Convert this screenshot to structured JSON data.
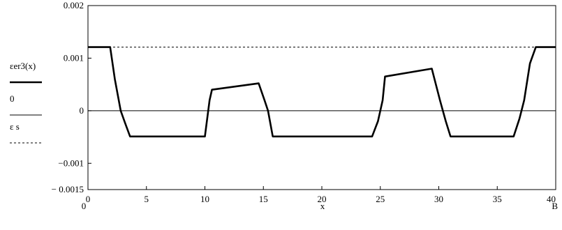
{
  "chart_data": {
    "type": "line",
    "xlabel": "x",
    "x_range_labels": {
      "min": "0",
      "max": "B"
    },
    "xlim": [
      0,
      40
    ],
    "ylim": [
      -0.0015,
      0.002
    ],
    "x_ticks": [
      {
        "value": 0,
        "label": "0"
      },
      {
        "value": 5,
        "label": "5"
      },
      {
        "value": 10,
        "label": "10"
      },
      {
        "value": 15,
        "label": "15"
      },
      {
        "value": 20,
        "label": "20"
      },
      {
        "value": 25,
        "label": "25"
      },
      {
        "value": 30,
        "label": "30"
      },
      {
        "value": 35,
        "label": "35"
      },
      {
        "value": 40,
        "label": "40"
      }
    ],
    "y_ticks": [
      {
        "value": 0.002,
        "label": "0.002"
      },
      {
        "value": 0.001,
        "label": "0.001"
      },
      {
        "value": 0,
        "label": "0"
      },
      {
        "value": -0.001,
        "label": "−0.001"
      },
      {
        "value": -0.0015,
        "label": "− 0.0015"
      }
    ],
    "series": [
      {
        "name": "εer3(x)",
        "style": "thick-solid",
        "color": "#000000",
        "x": [
          0,
          1.9,
          2.3,
          2.8,
          3.2,
          3.6,
          10.0,
          10.4,
          10.6,
          14.6,
          15.1,
          15.4,
          15.8,
          24.3,
          24.8,
          25.2,
          25.4,
          29.4,
          30.1,
          30.6,
          31.0,
          36.4,
          36.9,
          37.3,
          37.8,
          38.3,
          40
        ],
        "y": [
          0.00121,
          0.00121,
          0.0006,
          0.0,
          -0.00025,
          -0.00049,
          -0.00049,
          0.0002,
          0.0004,
          0.00052,
          0.0002,
          0.0,
          -0.00049,
          -0.00049,
          -0.0002,
          0.0002,
          0.00065,
          0.0008,
          0.0002,
          -0.0002,
          -0.00049,
          -0.00049,
          -0.00015,
          0.0002,
          0.0009,
          0.00121,
          0.00121
        ]
      },
      {
        "name": "0",
        "style": "thin-solid",
        "color": "#000000",
        "x": [
          0,
          40
        ],
        "y": [
          0,
          0
        ]
      },
      {
        "name": "ε s",
        "style": "dashed",
        "color": "#000000",
        "x": [
          0,
          40
        ],
        "y": [
          0.00121,
          0.00121
        ]
      }
    ]
  }
}
